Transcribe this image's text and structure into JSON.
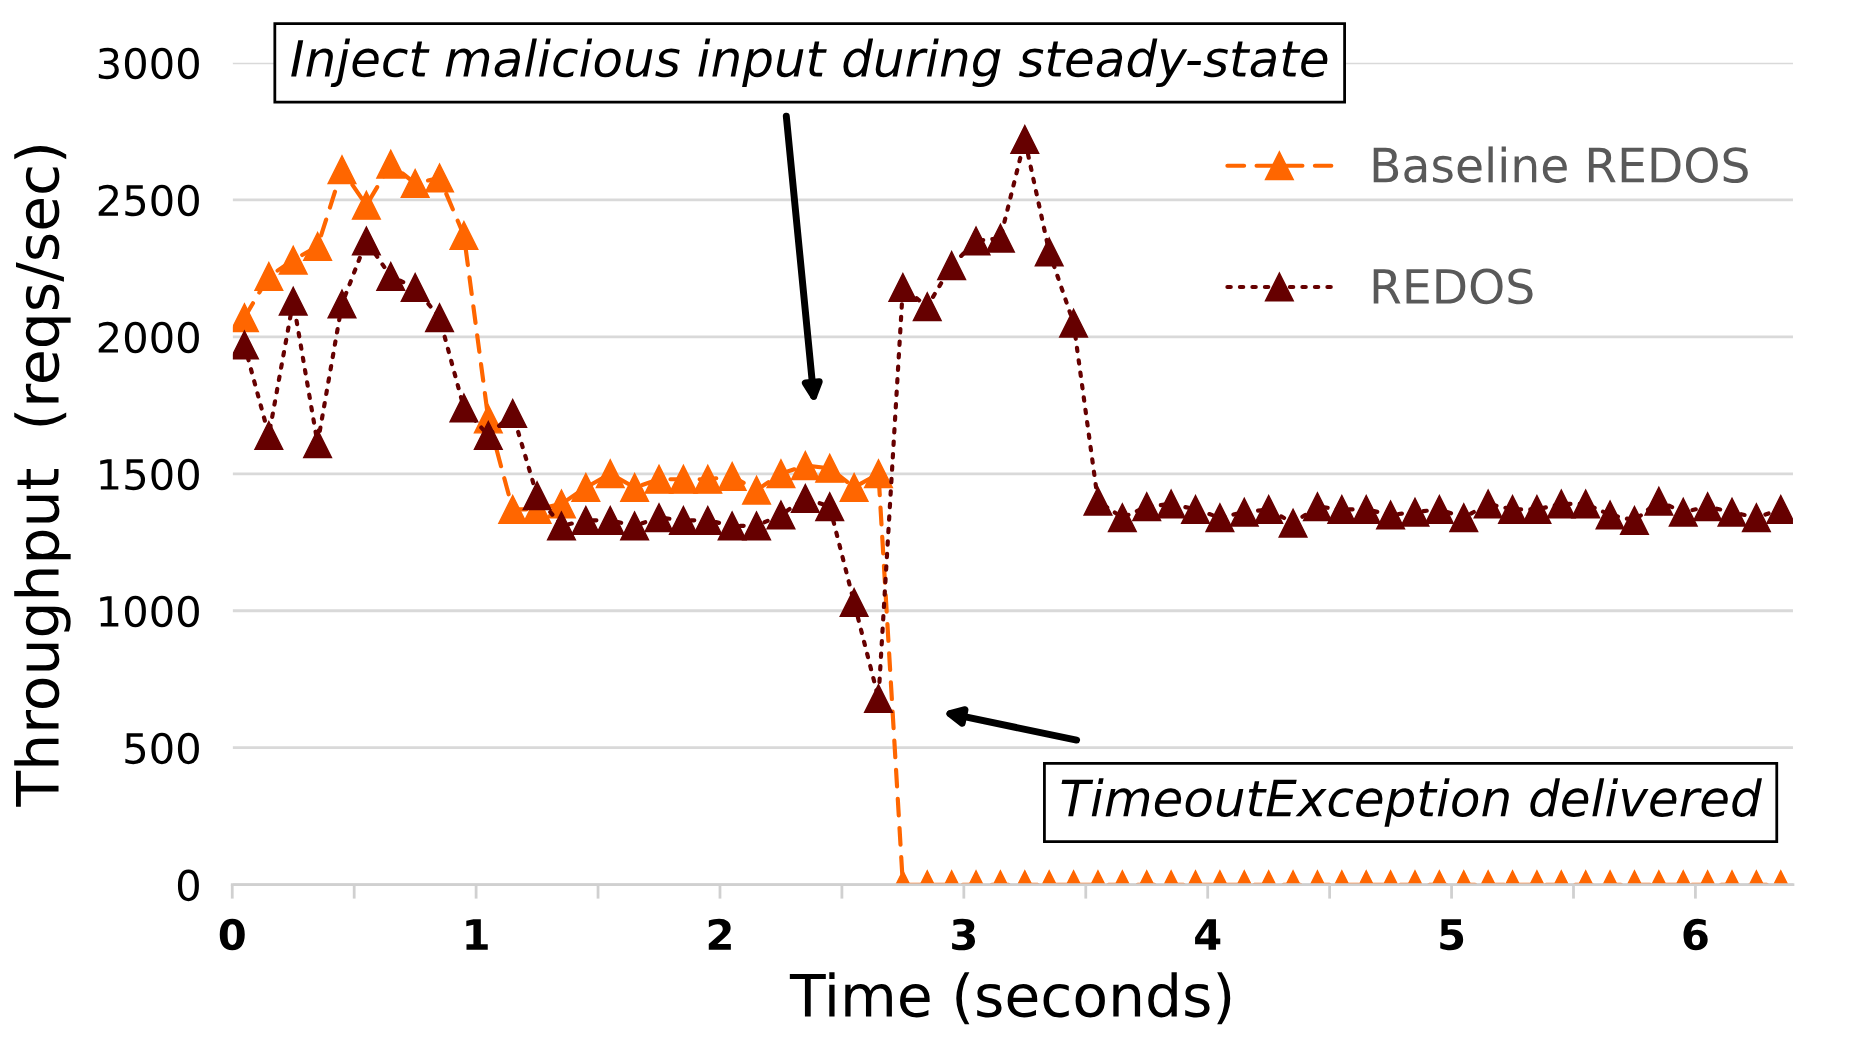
{
  "chart_data": {
    "type": "line",
    "xlabel": "Time (seconds)",
    "ylabel": "Throughput  (reqs/sec)",
    "x": [
      0.05,
      0.15,
      0.25,
      0.35,
      0.45,
      0.55,
      0.65,
      0.75,
      0.85,
      0.95,
      1.05,
      1.15,
      1.25,
      1.35,
      1.45,
      1.55,
      1.65,
      1.75,
      1.85,
      1.95,
      2.05,
      2.15,
      2.25,
      2.35,
      2.45,
      2.55,
      2.65,
      2.75,
      2.85,
      2.95,
      3.05,
      3.15,
      3.25,
      3.35,
      3.45,
      3.55,
      3.65,
      3.75,
      3.85,
      3.95,
      4.05,
      4.15,
      4.25,
      4.35,
      4.45,
      4.55,
      4.65,
      4.75,
      4.85,
      4.95,
      5.05,
      5.15,
      5.25,
      5.35,
      5.45,
      5.55,
      5.65,
      5.75,
      5.85,
      5.95,
      6.05,
      6.15,
      6.25,
      6.35
    ],
    "series": [
      {
        "name": "Baseline REDOS",
        "color": "#ff6600",
        "line_style": "dashed",
        "values": [
          2070,
          2220,
          2280,
          2330,
          2610,
          2480,
          2630,
          2560,
          2580,
          2370,
          1700,
          1370,
          1370,
          1390,
          1450,
          1500,
          1450,
          1480,
          1480,
          1480,
          1490,
          1440,
          1500,
          1530,
          1520,
          1450,
          1500,
          0,
          0,
          0,
          0,
          0,
          0,
          0,
          0,
          0,
          0,
          0,
          0,
          0,
          0,
          0,
          0,
          0,
          0,
          0,
          0,
          0,
          0,
          0,
          0,
          0,
          0,
          0,
          0,
          0,
          0,
          0,
          0,
          0,
          0,
          0,
          0,
          0
        ]
      },
      {
        "name": "REDOS",
        "color": "#660000",
        "line_style": "dotted",
        "values": [
          1970,
          1640,
          2130,
          1610,
          2120,
          2350,
          2220,
          2180,
          2070,
          1740,
          1640,
          1720,
          1420,
          1310,
          1330,
          1330,
          1310,
          1340,
          1330,
          1330,
          1310,
          1310,
          1350,
          1410,
          1380,
          1030,
          680,
          2180,
          2110,
          2260,
          2350,
          2360,
          2720,
          2310,
          2050,
          1400,
          1340,
          1380,
          1390,
          1370,
          1340,
          1360,
          1370,
          1320,
          1380,
          1370,
          1370,
          1350,
          1360,
          1370,
          1340,
          1390,
          1370,
          1370,
          1390,
          1390,
          1350,
          1330,
          1400,
          1360,
          1380,
          1360,
          1340,
          1370
        ]
      }
    ],
    "xlim": [
      0,
      6.4
    ],
    "xticks": [
      0,
      {
        "value": 0.5,
        "label": null
      },
      1,
      {
        "value": 1.5,
        "label": null
      },
      2,
      {
        "value": 2.5,
        "label": null
      },
      3,
      {
        "value": 3.5,
        "label": null
      },
      4,
      {
        "value": 4.5,
        "label": null
      },
      5,
      {
        "value": 5.5,
        "label": null
      },
      6
    ],
    "ylim": [
      0,
      3000
    ],
    "yticks": [
      0,
      500,
      1000,
      1500,
      2000,
      2500,
      3000
    ],
    "grid": "y",
    "legend": "top right",
    "marker": "triangle",
    "annotations": [
      "Inject malicious input during steady-state",
      "TimeoutException delivered"
    ]
  }
}
